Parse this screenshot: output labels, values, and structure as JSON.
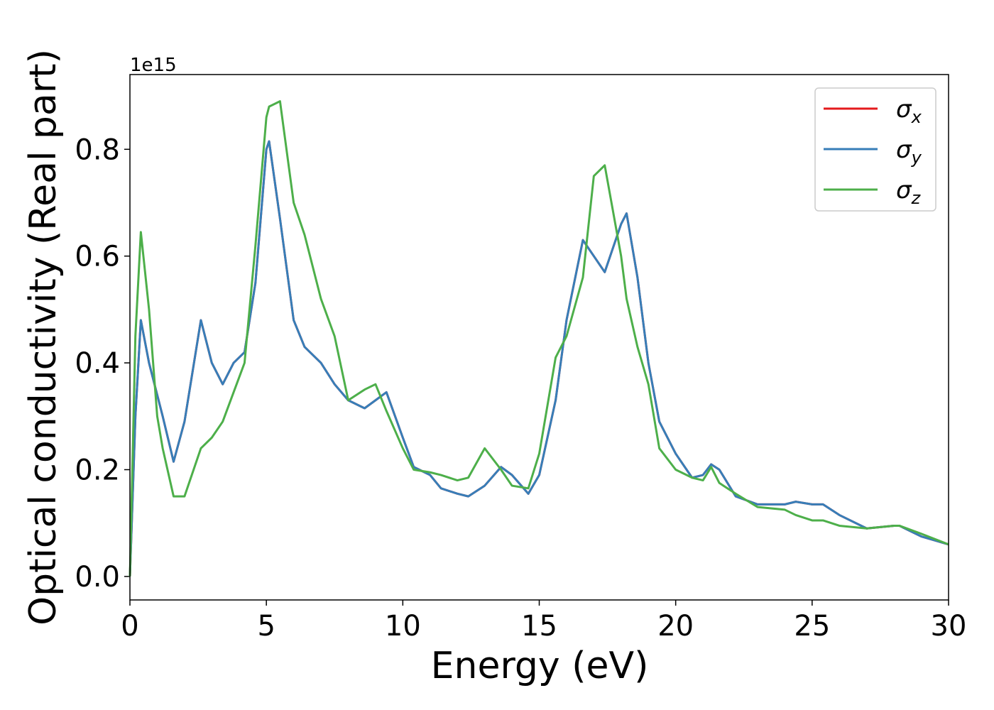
{
  "chart_data": {
    "type": "line",
    "xlabel": "Energy (eV)",
    "ylabel": "Optical conductivity (Real part)",
    "y_offset_label": "1e15",
    "xlim": [
      0,
      30
    ],
    "ylim": [
      -0.044,
      0.94
    ],
    "xticks": [
      0,
      5,
      10,
      15,
      20,
      25,
      30
    ],
    "yticks": [
      {
        "value": 0,
        "label": "0.0"
      },
      0.2,
      0.4,
      0.6,
      0.8
    ],
    "grid": false,
    "legend": "upper right",
    "x": [
      0,
      0.2,
      0.4,
      0.7,
      1.0,
      1.2,
      1.6,
      2.0,
      2.6,
      3.0,
      3.4,
      3.8,
      4.2,
      4.6,
      5.0,
      5.1,
      5.5,
      6.0,
      6.4,
      7.0,
      7.5,
      8.0,
      8.6,
      9.0,
      9.4,
      10.0,
      10.4,
      11.0,
      11.4,
      12.0,
      12.4,
      13.0,
      13.6,
      14.0,
      14.6,
      15.0,
      15.6,
      16.0,
      16.6,
      17.0,
      17.4,
      18.0,
      18.2,
      18.6,
      19.0,
      19.4,
      20.0,
      20.6,
      21.0,
      21.3,
      21.6,
      22.2,
      23.0,
      24.0,
      24.4,
      25.0,
      25.4,
      26.0,
      27.0,
      28.0,
      28.2,
      29.0,
      30.0
    ],
    "series": [
      {
        "name": "σx",
        "color": "#e41a1c",
        "values": [
          0,
          0.3,
          0.48,
          0.4,
          0.34,
          0.3,
          0.215,
          0.29,
          0.48,
          0.4,
          0.36,
          0.4,
          0.42,
          0.55,
          0.8,
          0.815,
          0.67,
          0.48,
          0.43,
          0.4,
          0.36,
          0.33,
          0.315,
          0.33,
          0.345,
          0.26,
          0.205,
          0.19,
          0.165,
          0.155,
          0.15,
          0.17,
          0.205,
          0.19,
          0.155,
          0.19,
          0.33,
          0.48,
          0.63,
          0.6,
          0.57,
          0.66,
          0.68,
          0.56,
          0.4,
          0.29,
          0.23,
          0.185,
          0.19,
          0.21,
          0.2,
          0.15,
          0.135,
          0.135,
          0.14,
          0.135,
          0.135,
          0.115,
          0.09,
          0.095,
          0.095,
          0.075,
          0.06
        ]
      },
      {
        "name": "σy",
        "color": "#377eb8",
        "values": [
          0,
          0.3,
          0.48,
          0.4,
          0.34,
          0.3,
          0.215,
          0.29,
          0.48,
          0.4,
          0.36,
          0.4,
          0.42,
          0.55,
          0.8,
          0.815,
          0.67,
          0.48,
          0.43,
          0.4,
          0.36,
          0.33,
          0.315,
          0.33,
          0.345,
          0.26,
          0.205,
          0.19,
          0.165,
          0.155,
          0.15,
          0.17,
          0.205,
          0.19,
          0.155,
          0.19,
          0.33,
          0.48,
          0.63,
          0.6,
          0.57,
          0.66,
          0.68,
          0.56,
          0.4,
          0.29,
          0.23,
          0.185,
          0.19,
          0.21,
          0.2,
          0.15,
          0.135,
          0.135,
          0.14,
          0.135,
          0.135,
          0.115,
          0.09,
          0.095,
          0.095,
          0.075,
          0.06
        ]
      },
      {
        "name": "σz",
        "color": "#4daf4a",
        "values": [
          0,
          0.45,
          0.645,
          0.5,
          0.3,
          0.24,
          0.15,
          0.15,
          0.24,
          0.26,
          0.29,
          0.345,
          0.4,
          0.62,
          0.86,
          0.88,
          0.89,
          0.7,
          0.64,
          0.52,
          0.45,
          0.33,
          0.35,
          0.36,
          0.31,
          0.24,
          0.2,
          0.195,
          0.19,
          0.18,
          0.185,
          0.24,
          0.2,
          0.17,
          0.165,
          0.23,
          0.41,
          0.45,
          0.56,
          0.75,
          0.77,
          0.6,
          0.52,
          0.43,
          0.36,
          0.24,
          0.2,
          0.185,
          0.18,
          0.205,
          0.175,
          0.155,
          0.13,
          0.125,
          0.115,
          0.105,
          0.105,
          0.095,
          0.09,
          0.095,
          0.095,
          0.08,
          0.06
        ]
      }
    ]
  }
}
